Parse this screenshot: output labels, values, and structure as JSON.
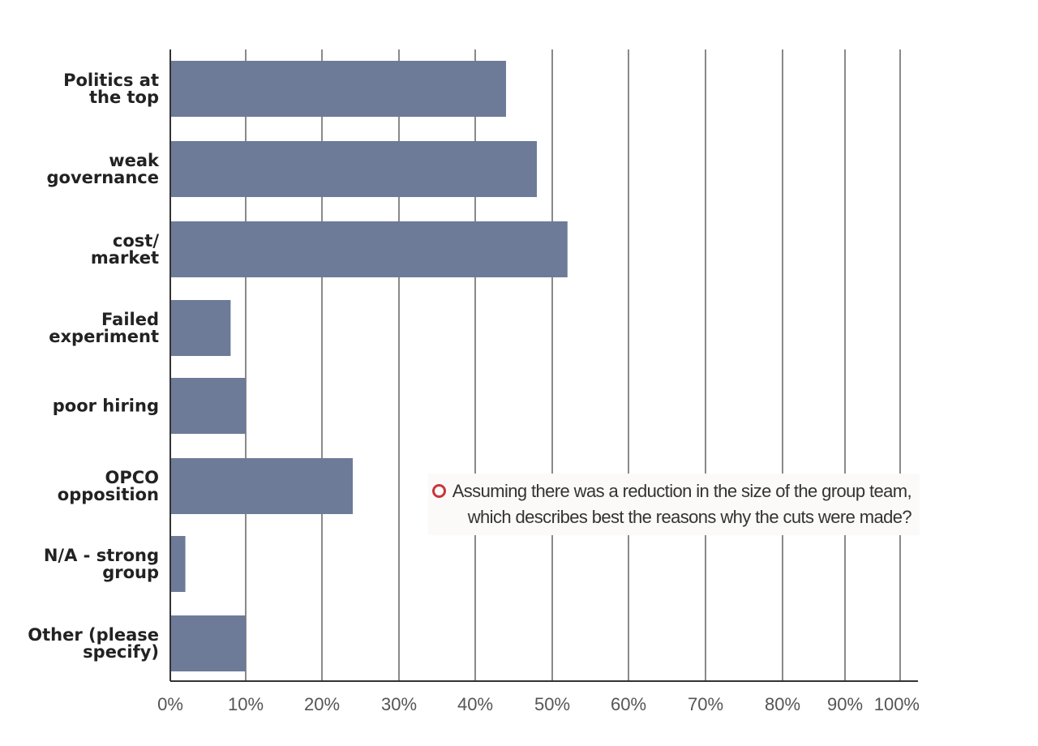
{
  "chart_data": {
    "type": "bar",
    "orientation": "horizontal",
    "categories": [
      [
        "Politics at",
        "the top"
      ],
      [
        "weak",
        "governance"
      ],
      [
        "cost/",
        "market"
      ],
      [
        "Failed",
        "experiment"
      ],
      [
        "poor hiring"
      ],
      [
        "OPCO",
        "opposition"
      ],
      [
        "N/A - strong",
        "group"
      ],
      [
        "Other (please",
        "specify)"
      ]
    ],
    "values": [
      44,
      48,
      52,
      8,
      10,
      24,
      2,
      10
    ],
    "xlim": [
      0,
      100
    ],
    "xticks": [
      "0%",
      "10%",
      "20%",
      "30%",
      "40%",
      "50%",
      "60%",
      "70%",
      "80%",
      "90%",
      "100%"
    ],
    "grid": "vertical",
    "colors": {
      "bar": "#6d7b98",
      "grid": "#4a4a4a",
      "axis": "#333333"
    }
  },
  "annotation": {
    "lines": [
      "Assuming there was a reduction in the size of the group team,",
      "which describes best the reasons why the cuts were made?"
    ],
    "marker_icon": "red-circle-marker-icon",
    "marker_color": "#c8353b"
  }
}
